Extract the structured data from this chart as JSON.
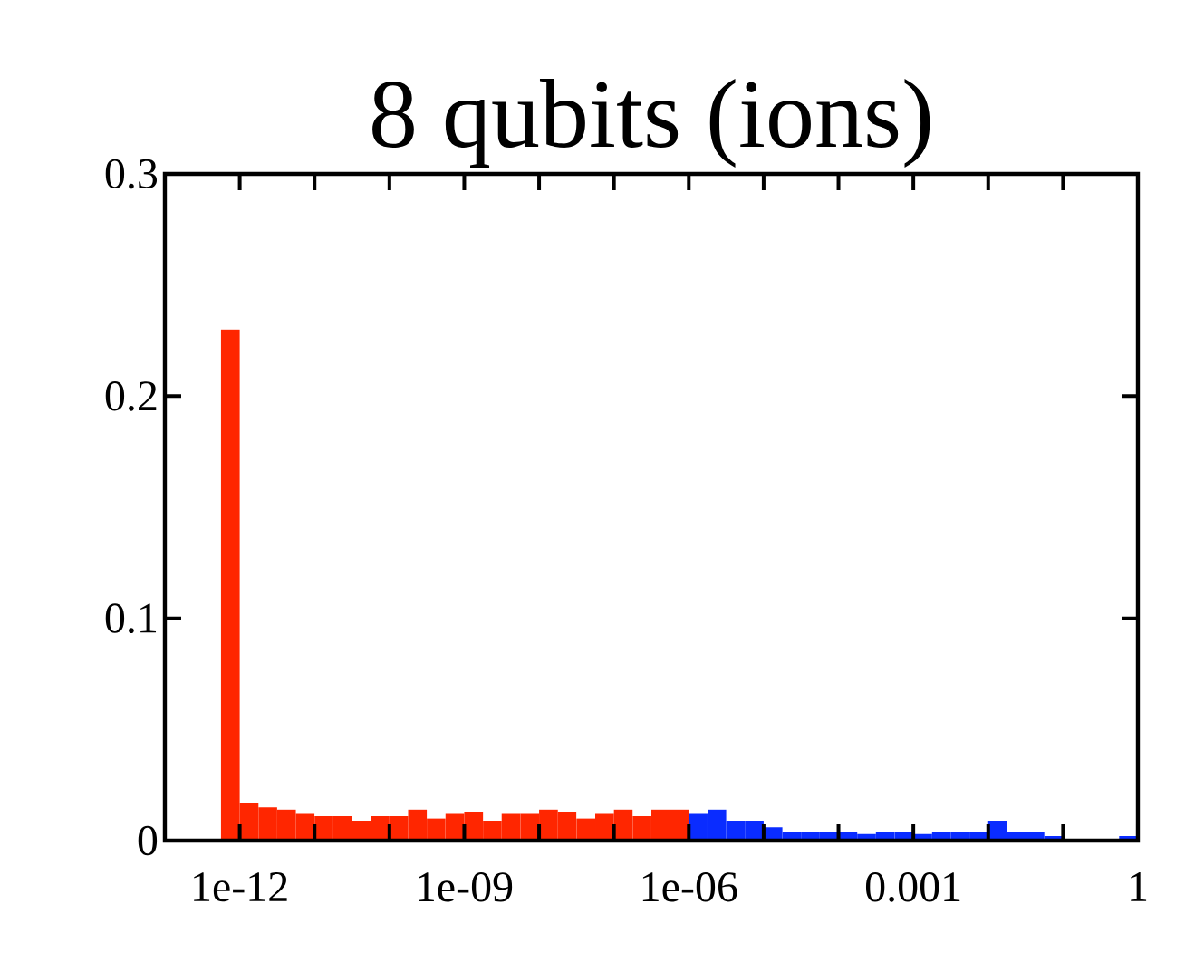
{
  "chart_data": {
    "type": "histogram",
    "title": "8 qubits (ions)",
    "bins": [
      5.62e-13,
      1e-12,
      1.78e-12,
      3.16e-12,
      5.62e-12,
      1e-11,
      1.78e-11,
      3.16e-11,
      5.62e-11,
      1e-10,
      1.78e-10,
      3.16e-10,
      5.62e-10,
      1e-09,
      1.78e-09,
      3.16e-09,
      5.62e-09,
      1e-08,
      1.78e-08,
      3.16e-08,
      5.62e-08,
      1e-07,
      1.78e-07,
      3.16e-07,
      5.62e-07,
      1e-06,
      1.78e-06,
      3.16e-06,
      5.62e-06,
      1e-05,
      1.78e-05,
      3.16e-05,
      5.62e-05,
      0.0001,
      0.000178,
      0.000316,
      0.000562,
      0.001,
      0.00178,
      0.00316,
      0.00562,
      0.01,
      0.0178,
      0.0316,
      0.0562,
      0.1,
      0.178,
      0.316,
      0.562,
      1
    ],
    "values": [
      0.23,
      0.017,
      0.015,
      0.014,
      0.012,
      0.011,
      0.011,
      0.009,
      0.011,
      0.011,
      0.014,
      0.01,
      0.012,
      0.013,
      0.009,
      0.012,
      0.012,
      0.014,
      0.013,
      0.01,
      0.012,
      0.014,
      0.011,
      0.014,
      0.014,
      0.012,
      0.014,
      0.009,
      0.009,
      0.006,
      0.004,
      0.004,
      0.004,
      0.004,
      0.003,
      0.004,
      0.004,
      0.003,
      0.004,
      0.004,
      0.004,
      0.009,
      0.004,
      0.004,
      0.002,
      0,
      0,
      0,
      0.002
    ],
    "colors": [
      "#ff2600",
      "#ff2600",
      "#ff2600",
      "#ff2600",
      "#ff2600",
      "#ff2600",
      "#ff2600",
      "#ff2600",
      "#ff2600",
      "#ff2600",
      "#ff2600",
      "#ff2600",
      "#ff2600",
      "#ff2600",
      "#ff2600",
      "#ff2600",
      "#ff2600",
      "#ff2600",
      "#ff2600",
      "#ff2600",
      "#ff2600",
      "#ff2600",
      "#ff2600",
      "#ff2600",
      "#ff2600",
      "#0a2cff",
      "#0a2cff",
      "#0a2cff",
      "#0a2cff",
      "#0a2cff",
      "#0a2cff",
      "#0a2cff",
      "#0a2cff",
      "#0a2cff",
      "#0a2cff",
      "#0a2cff",
      "#0a2cff",
      "#0a2cff",
      "#0a2cff",
      "#0a2cff",
      "#0a2cff",
      "#0a2cff",
      "#0a2cff",
      "#0a2cff",
      "#0a2cff",
      "#0a2cff",
      "#0a2cff",
      "#0a2cff",
      "#0a2cff"
    ],
    "log": "x",
    "xlim": [
      1e-13,
      1
    ],
    "ylim": [
      0,
      0.3
    ],
    "xticks": [
      {
        "value": 1e-13,
        "label": null
      },
      {
        "value": 1e-12,
        "label": "1e-12"
      },
      {
        "value": 1e-11,
        "label": null
      },
      {
        "value": 1e-10,
        "label": null
      },
      {
        "value": 1e-09,
        "label": "1e-09"
      },
      {
        "value": 1e-08,
        "label": null
      },
      {
        "value": 1e-07,
        "label": null
      },
      {
        "value": 1e-06,
        "label": "1e-06"
      },
      {
        "value": 1e-05,
        "label": null
      },
      {
        "value": 0.0001,
        "label": null
      },
      {
        "value": 0.001,
        "label": "0.001"
      },
      {
        "value": 0.01,
        "label": null
      },
      {
        "value": 0.1,
        "label": null
      },
      {
        "value": 1,
        "label": "1"
      }
    ],
    "yticks": [
      0,
      0.1,
      0.2,
      0.3
    ],
    "grid": false
  }
}
